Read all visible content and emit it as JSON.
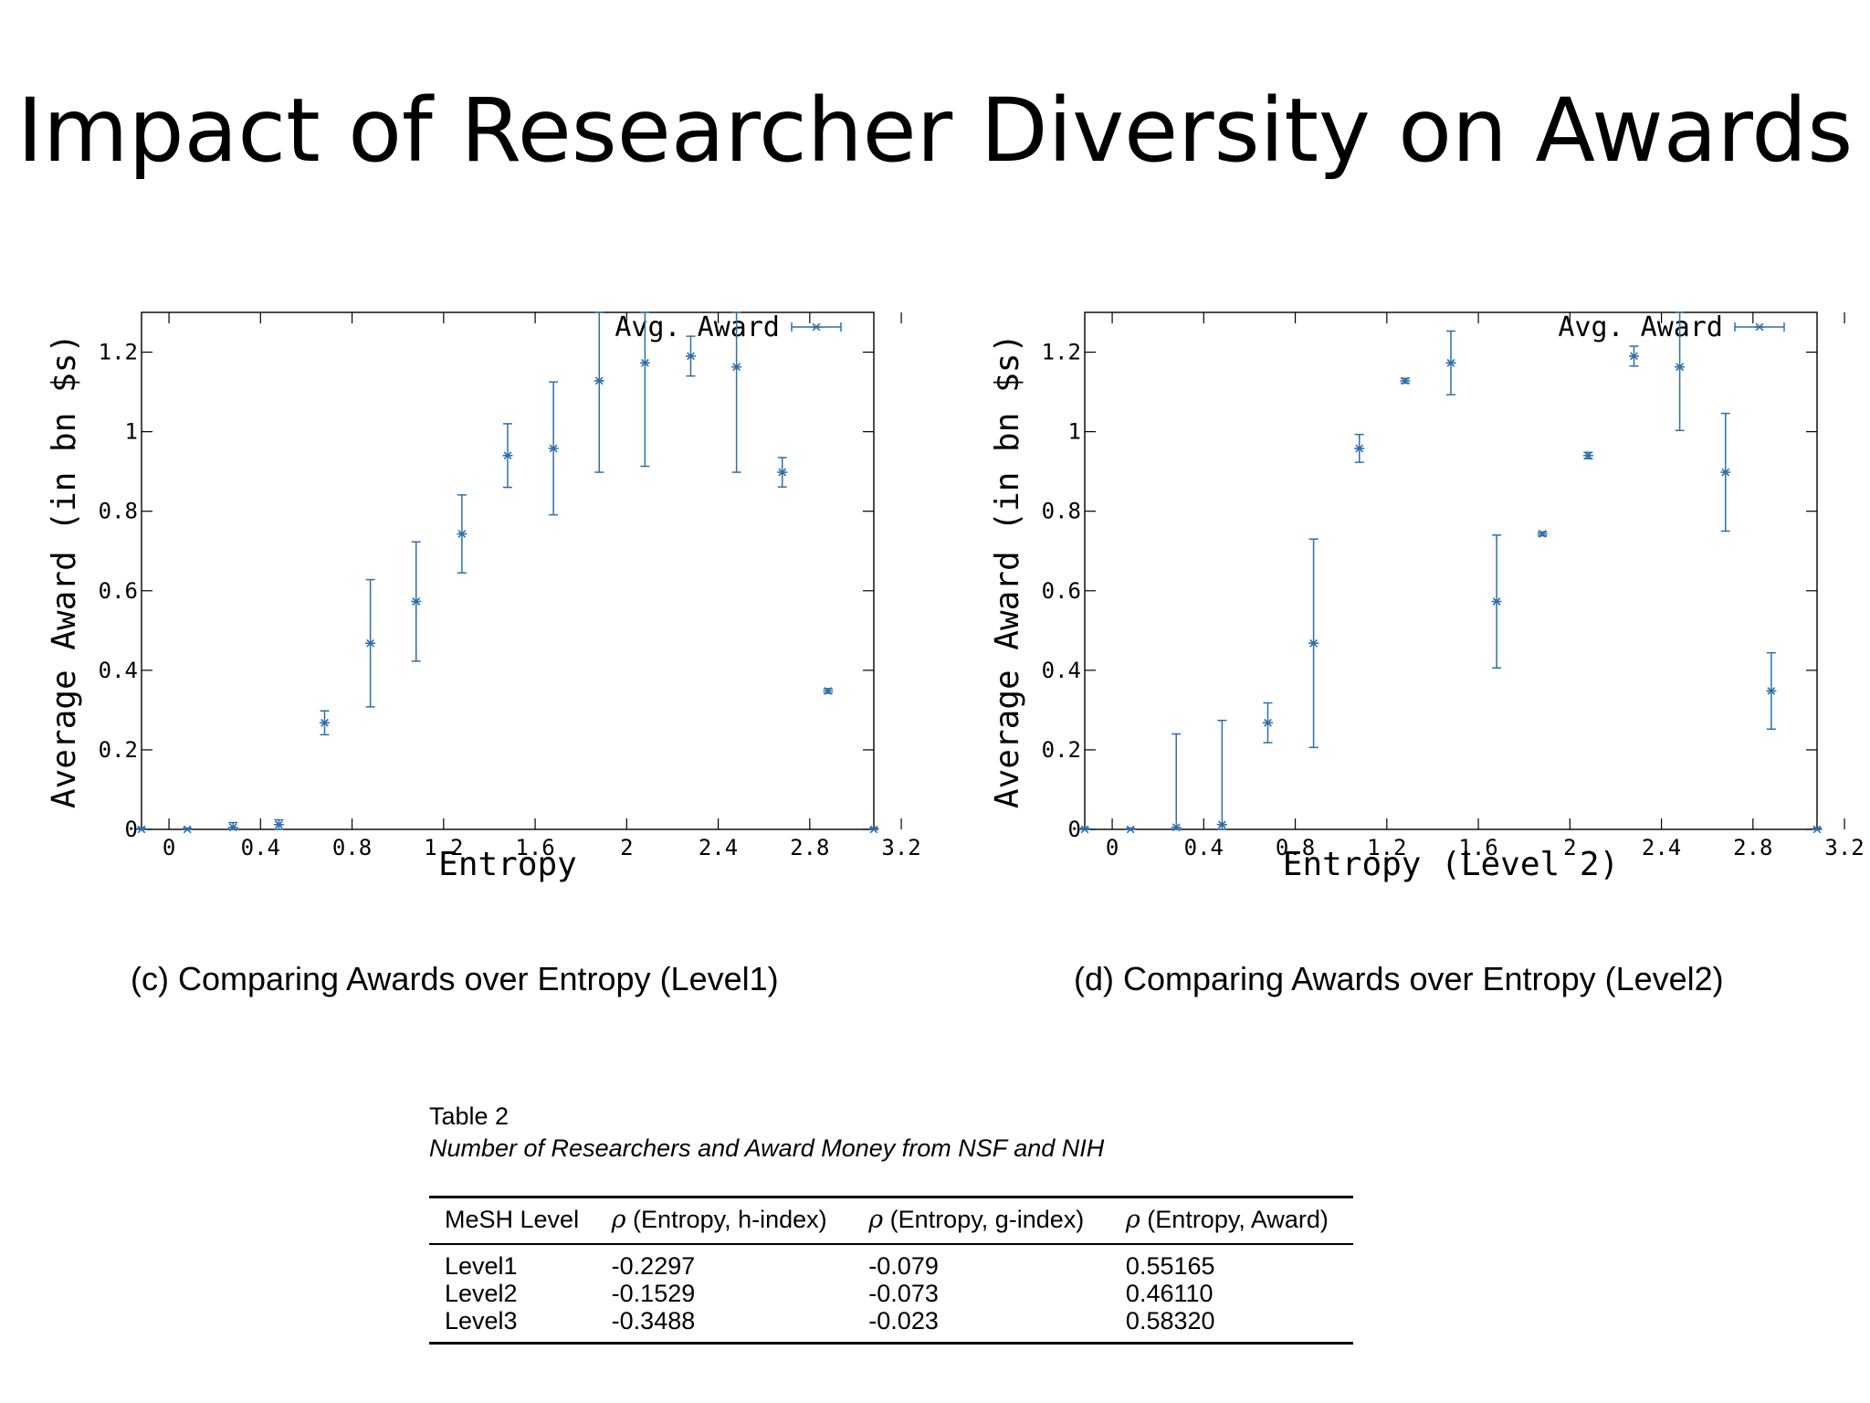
{
  "slide": {
    "title": "Impact of Researcher Diversity on Awards"
  },
  "chart_data": [
    {
      "type": "scatter",
      "xlabel": "Entropy",
      "ylabel": "Average Award (in bn $s)",
      "legend": "Avg. Award",
      "legend_position": "top-right",
      "xlim": [
        -0.12,
        3.08
      ],
      "ylim": [
        0,
        1.3
      ],
      "grid": false,
      "x_ticks": [
        0,
        0.4,
        0.8,
        1.2,
        1.6,
        2,
        2.4,
        2.8,
        3.2
      ],
      "x_tick_labels": [
        "0",
        "0.4",
        "0.8",
        "1.2",
        "1.6",
        "2",
        "2.4",
        "2.8",
        "3.2"
      ],
      "y_ticks": [
        0,
        0.2,
        0.4,
        0.6,
        0.8,
        1,
        1.2
      ],
      "y_tick_labels": [
        "0",
        "0.2",
        "0.4",
        "0.6",
        "0.8",
        "1",
        "1.2"
      ],
      "color": "#2f6fa8",
      "points": [
        {
          "x": -0.12,
          "y": 0.0,
          "err": 0.003
        },
        {
          "x": 0.08,
          "y": 0.0,
          "err": 0.003
        },
        {
          "x": 0.28,
          "y": 0.005,
          "err": 0.012
        },
        {
          "x": 0.48,
          "y": 0.012,
          "err": 0.012
        },
        {
          "x": 0.68,
          "y": 0.268,
          "err": 0.03
        },
        {
          "x": 0.88,
          "y": 0.468,
          "err": 0.16
        },
        {
          "x": 1.08,
          "y": 0.573,
          "err": 0.15
        },
        {
          "x": 1.28,
          "y": 0.743,
          "err": 0.098
        },
        {
          "x": 1.48,
          "y": 0.94,
          "err": 0.08
        },
        {
          "x": 1.68,
          "y": 0.958,
          "err": 0.167
        },
        {
          "x": 1.88,
          "y": 1.128,
          "err": 0.23
        },
        {
          "x": 2.08,
          "y": 1.173,
          "err": 0.26
        },
        {
          "x": 2.28,
          "y": 1.19,
          "err": 0.05
        },
        {
          "x": 2.48,
          "y": 1.163,
          "err": 0.265
        },
        {
          "x": 2.68,
          "y": 0.898,
          "err": 0.037
        },
        {
          "x": 2.88,
          "y": 0.348,
          "err": 0.006
        },
        {
          "x": 3.08,
          "y": 0.0,
          "err": 0.003
        }
      ]
    },
    {
      "type": "scatter",
      "xlabel": "Entropy (Level 2)",
      "ylabel": "Average Award (in bn $s)",
      "legend": "Avg. Award",
      "legend_position": "top-right",
      "xlim": [
        -0.12,
        3.08
      ],
      "ylim": [
        0,
        1.3
      ],
      "grid": false,
      "x_ticks": [
        0,
        0.4,
        0.8,
        1.2,
        1.6,
        2,
        2.4,
        2.8,
        3.2
      ],
      "x_tick_labels": [
        "0",
        "0.4",
        "0.8",
        "1.2",
        "1.6",
        "2",
        "2.4",
        "2.8",
        "3.2"
      ],
      "y_ticks": [
        0,
        0.2,
        0.4,
        0.6,
        0.8,
        1,
        1.2
      ],
      "y_tick_labels": [
        "0",
        "0.2",
        "0.4",
        "0.6",
        "0.8",
        "1",
        "1.2"
      ],
      "color": "#2f6fa8",
      "points": [
        {
          "x": -0.12,
          "y": 0.0,
          "err": 0.003
        },
        {
          "x": 0.08,
          "y": 0.0,
          "err": 0.003
        },
        {
          "x": 0.28,
          "y": 0.005,
          "err": 0.235
        },
        {
          "x": 0.48,
          "y": 0.012,
          "err": 0.262
        },
        {
          "x": 0.68,
          "y": 0.268,
          "err": 0.05
        },
        {
          "x": 0.88,
          "y": 0.468,
          "err": 0.262
        },
        {
          "x": 1.08,
          "y": 0.958,
          "err": 0.035
        },
        {
          "x": 1.28,
          "y": 1.128,
          "err": 0.006
        },
        {
          "x": 1.48,
          "y": 1.173,
          "err": 0.08
        },
        {
          "x": 1.68,
          "y": 0.573,
          "err": 0.167
        },
        {
          "x": 1.88,
          "y": 0.743,
          "err": 0.005
        },
        {
          "x": 2.08,
          "y": 0.94,
          "err": 0.008
        },
        {
          "x": 2.28,
          "y": 1.19,
          "err": 0.025
        },
        {
          "x": 2.48,
          "y": 1.163,
          "err": 0.16
        },
        {
          "x": 2.68,
          "y": 0.898,
          "err": 0.148
        },
        {
          "x": 2.88,
          "y": 0.348,
          "err": 0.096
        },
        {
          "x": 3.08,
          "y": 0.0,
          "err": 0.003
        }
      ]
    }
  ],
  "captions": {
    "left": "(c)  Comparing Awards over Entropy (Level1)",
    "right": "(d)  Comparing Awards over Entropy (Level2)"
  },
  "table": {
    "label": "Table 2",
    "subtitle": "Number of Researchers and Award Money from NSF and NIH",
    "headers": [
      {
        "symbol": "",
        "text": "MeSH Level"
      },
      {
        "symbol": "ρ",
        "text": " (Entropy, h-index)"
      },
      {
        "symbol": "ρ",
        "text": " (Entropy, g-index)"
      },
      {
        "symbol": "ρ",
        "text": " (Entropy, Award)"
      }
    ],
    "rows": [
      [
        "Level1",
        "-0.2297",
        "-0.079",
        "0.55165"
      ],
      [
        "Level2",
        "-0.1529",
        "-0.073",
        "0.46110"
      ],
      [
        "Level3",
        "-0.3488",
        "-0.023",
        "0.58320"
      ]
    ]
  }
}
